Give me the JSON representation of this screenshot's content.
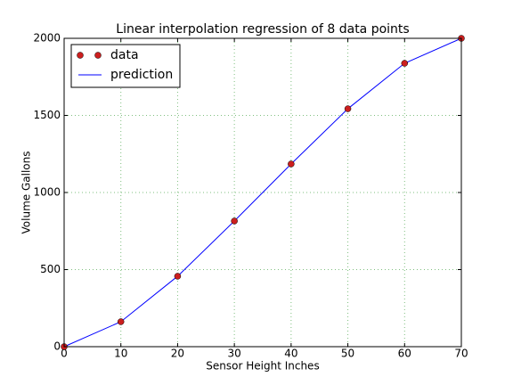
{
  "chart_data": {
    "type": "line",
    "title": "Linear interpolation regression of 8 data points",
    "xlabel": "Sensor Height Inches",
    "ylabel": "Volume Gallons",
    "x": [
      0,
      10,
      20,
      30,
      40,
      50,
      60,
      70
    ],
    "series": [
      {
        "name": "data",
        "color": "#cc1f1f",
        "mode": "markers",
        "values": [
          0,
          162,
          457,
          815,
          1185,
          1543,
          1838,
          2000
        ]
      },
      {
        "name": "prediction",
        "color": "#0000ff",
        "mode": "lines",
        "values": [
          0,
          162,
          457,
          815,
          1185,
          1543,
          1838,
          2000
        ]
      }
    ],
    "xlim": [
      0,
      70
    ],
    "ylim": [
      0,
      2000
    ],
    "xticks": [
      0,
      10,
      20,
      30,
      40,
      50,
      60,
      70
    ],
    "yticks": [
      0,
      500,
      1000,
      1500,
      2000
    ],
    "grid": true,
    "legend": "upper-left"
  }
}
